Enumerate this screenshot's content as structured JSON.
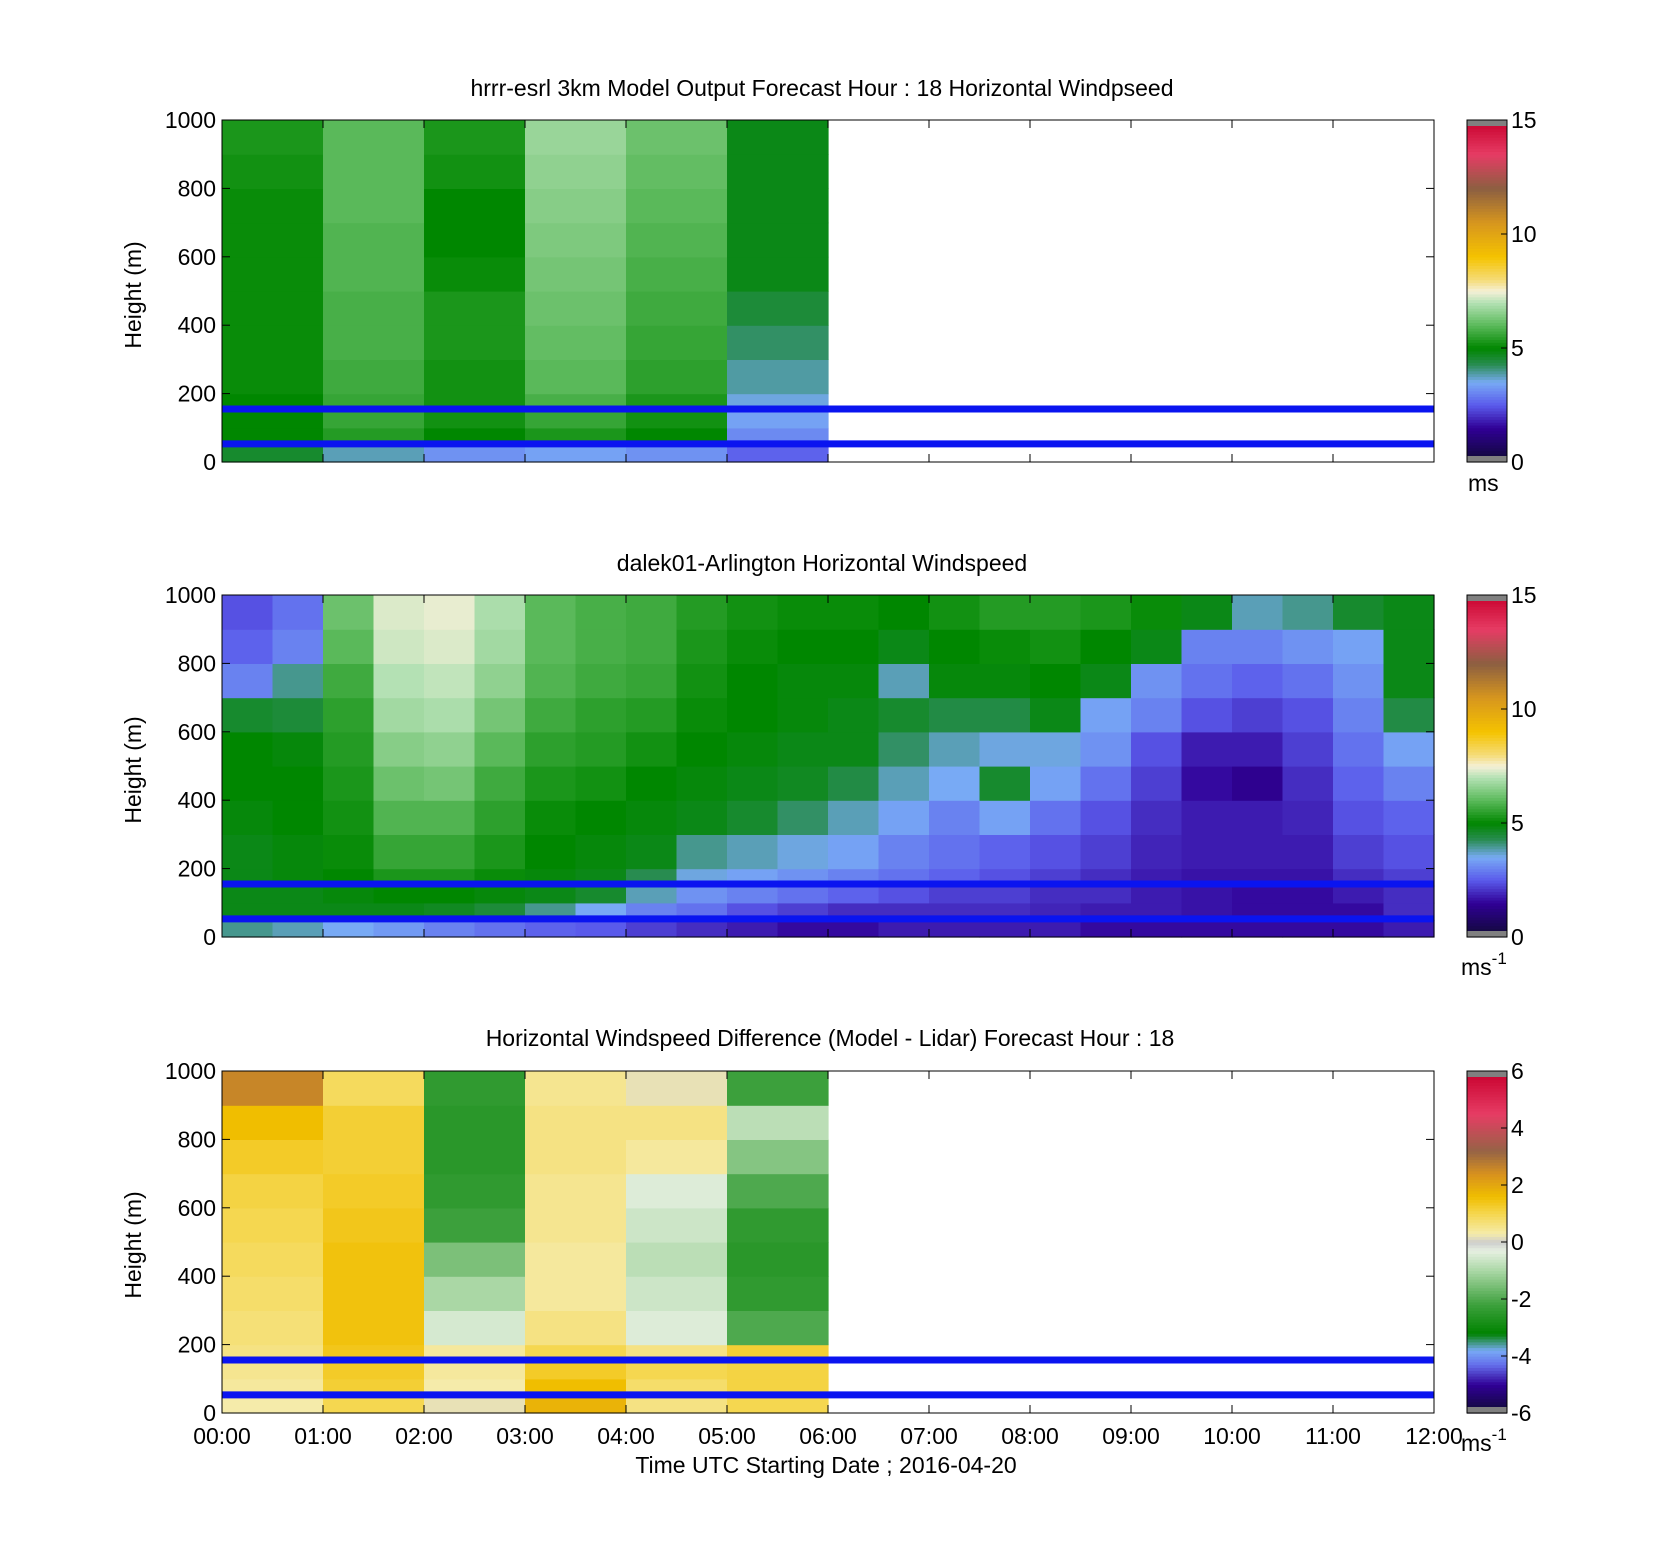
{
  "chart_data": [
    {
      "type": "heatmap",
      "title": "hrrr-esrl 3km Model Output   Forecast Hour : 18 Horizontal Windpseed",
      "ylabel": "Height (m)",
      "xlabel": "",
      "xlim": [
        0,
        12
      ],
      "ylim": [
        0,
        1000
      ],
      "yticks": [
        "0",
        "200",
        "400",
        "600",
        "800",
        "1000"
      ],
      "xticks": [
        "",
        "",
        "",
        "",
        "",
        "",
        "",
        "",
        "",
        "",
        "",
        "",
        ""
      ],
      "colorbar": {
        "ticks": [
          "0",
          "5",
          "10",
          "15"
        ],
        "range": [
          0,
          15
        ],
        "unit": "ms",
        "unit_sup": ""
      },
      "reference_lines_m": [
        155,
        53
      ],
      "data": {
        "x_start_hours": [
          0,
          1,
          2,
          3,
          4,
          5
        ],
        "column_width_hours": 1,
        "height_levels_m": [
          0,
          50,
          100,
          150,
          200,
          300,
          400,
          500,
          600,
          700,
          800,
          900
        ],
        "values": [
          [
            4.6,
            5.0,
            5.0,
            5.0,
            5.1,
            5.1,
            5.1,
            5.1,
            5.1,
            5.1,
            5.2,
            5.3
          ],
          [
            3.8,
            5.4,
            5.6,
            5.6,
            5.7,
            5.8,
            5.8,
            5.9,
            5.9,
            6.0,
            6.0,
            6.0
          ],
          [
            3.2,
            5.0,
            5.2,
            5.2,
            5.2,
            5.3,
            5.3,
            5.1,
            5.0,
            5.0,
            5.2,
            5.3
          ],
          [
            3.4,
            5.3,
            5.6,
            5.8,
            6.0,
            6.1,
            6.2,
            6.3,
            6.4,
            6.5,
            6.6,
            6.7
          ],
          [
            3.2,
            5.0,
            5.2,
            5.3,
            5.5,
            5.6,
            5.7,
            5.8,
            5.9,
            6.0,
            6.1,
            6.2
          ],
          [
            2.6,
            3.1,
            3.4,
            3.6,
            3.9,
            4.2,
            4.5,
            4.8,
            4.8,
            4.8,
            4.8,
            4.8
          ]
        ]
      }
    },
    {
      "type": "heatmap",
      "title": "dalek01-Arlington  Horizontal Windspeed",
      "ylabel": "Height (m)",
      "xlabel": "",
      "xlim": [
        0,
        12
      ],
      "ylim": [
        0,
        1000
      ],
      "yticks": [
        "0",
        "200",
        "400",
        "600",
        "800",
        "1000"
      ],
      "xticks": [
        "",
        "",
        "",
        "",
        "",
        "",
        "",
        "",
        "",
        "",
        "",
        "",
        ""
      ],
      "colorbar": {
        "ticks": [
          "0",
          "5",
          "10",
          "15"
        ],
        "range": [
          0,
          15
        ],
        "unit": "ms",
        "unit_sup": "-1"
      },
      "reference_lines_m": [
        155,
        53
      ],
      "data": {
        "x_start_hours": [
          0,
          0.5,
          1,
          1.5,
          2,
          2.5,
          3,
          3.5,
          4,
          4.5,
          5,
          5.5,
          6,
          6.5,
          7,
          7.5,
          8,
          8.5,
          9,
          9.5,
          10,
          10.5,
          11,
          11.5
        ],
        "column_width_hours": 0.5,
        "height_levels_m": [
          0,
          50,
          100,
          150,
          200,
          300,
          400,
          500,
          600,
          700,
          800,
          900
        ],
        "values": [
          [
            4.0,
            4.8,
            4.8,
            4.8,
            4.8,
            4.9,
            5.0,
            5.0,
            4.6,
            3.0,
            2.6,
            2.4
          ],
          [
            3.8,
            4.8,
            4.8,
            4.9,
            4.9,
            5.0,
            5.0,
            4.9,
            4.5,
            4.0,
            3.0,
            2.8
          ],
          [
            3.5,
            4.8,
            4.9,
            5.0,
            5.1,
            5.2,
            5.3,
            5.4,
            5.5,
            5.7,
            6.0,
            6.2
          ],
          [
            3.3,
            4.8,
            5.0,
            5.3,
            5.6,
            5.9,
            6.2,
            6.5,
            6.8,
            7.0,
            7.2,
            7.3
          ],
          [
            3.0,
            4.7,
            5.0,
            5.3,
            5.6,
            5.9,
            6.3,
            6.6,
            6.9,
            7.1,
            7.3,
            7.4
          ],
          [
            2.8,
            4.5,
            4.9,
            5.1,
            5.3,
            5.5,
            5.7,
            6.0,
            6.3,
            6.6,
            6.8,
            6.9
          ],
          [
            2.6,
            4.0,
            4.8,
            4.9,
            5.0,
            5.1,
            5.3,
            5.5,
            5.7,
            5.9,
            6.0,
            6.0
          ],
          [
            2.5,
            3.5,
            4.6,
            4.8,
            4.9,
            5.0,
            5.2,
            5.4,
            5.5,
            5.7,
            5.8,
            5.8
          ],
          [
            2.2,
            3.0,
            3.8,
            4.3,
            4.8,
            4.9,
            5.0,
            5.2,
            5.4,
            5.6,
            5.7,
            5.7
          ],
          [
            2.0,
            2.8,
            3.2,
            3.6,
            4.0,
            4.8,
            4.9,
            5.0,
            5.1,
            5.2,
            5.3,
            5.4
          ],
          [
            1.8,
            2.4,
            3.0,
            3.4,
            3.8,
            4.6,
            4.8,
            4.9,
            5.0,
            5.0,
            5.1,
            5.2
          ],
          [
            1.6,
            2.2,
            2.8,
            3.2,
            3.6,
            4.2,
            4.7,
            4.8,
            4.9,
            4.9,
            5.0,
            5.1
          ],
          [
            1.6,
            2.0,
            2.6,
            3.0,
            3.4,
            3.8,
            4.4,
            4.8,
            4.8,
            4.9,
            5.0,
            5.1
          ],
          [
            1.8,
            2.0,
            2.4,
            2.8,
            3.0,
            3.4,
            3.8,
            4.2,
            4.6,
            3.8,
            4.8,
            5.0
          ],
          [
            1.8,
            2.0,
            2.2,
            2.6,
            2.8,
            3.0,
            3.5,
            3.8,
            4.4,
            4.9,
            5.0,
            5.2
          ],
          [
            1.8,
            2.0,
            2.2,
            2.4,
            2.6,
            3.4,
            4.6,
            3.6,
            4.4,
            4.9,
            5.1,
            5.4
          ],
          [
            1.8,
            1.9,
            2.0,
            2.2,
            2.4,
            2.8,
            3.4,
            3.6,
            4.8,
            5.0,
            5.2,
            5.4
          ],
          [
            1.6,
            1.8,
            2.0,
            2.0,
            2.2,
            2.4,
            2.8,
            3.2,
            3.4,
            4.8,
            5.0,
            5.3
          ],
          [
            1.6,
            1.8,
            1.8,
            1.8,
            1.9,
            2.0,
            2.2,
            2.4,
            3.0,
            3.2,
            4.8,
            5.1
          ],
          [
            1.6,
            1.7,
            1.7,
            1.7,
            1.8,
            1.8,
            1.6,
            1.8,
            2.4,
            2.8,
            3.0,
            4.8
          ],
          [
            1.6,
            1.6,
            1.6,
            1.7,
            1.8,
            1.8,
            1.4,
            1.8,
            2.2,
            2.6,
            3.0,
            3.8
          ],
          [
            1.6,
            1.6,
            1.6,
            1.7,
            1.8,
            1.9,
            2.0,
            2.2,
            2.4,
            2.8,
            3.2,
            4.0
          ],
          [
            1.6,
            1.6,
            1.8,
            2.0,
            2.2,
            2.4,
            2.6,
            2.8,
            3.0,
            3.2,
            3.4,
            4.6
          ],
          [
            1.8,
            2.0,
            2.0,
            2.2,
            2.4,
            2.6,
            3.0,
            3.4,
            4.4,
            4.8,
            4.8,
            4.8
          ]
        ]
      }
    },
    {
      "type": "heatmap",
      "title": "Horizontal Windspeed Difference (Model - Lidar) Forecast Hour : 18",
      "ylabel": "Height (m)",
      "xlabel": "Time UTC  Starting Date ; 2016-04-20",
      "xlim": [
        0,
        12
      ],
      "ylim": [
        0,
        1000
      ],
      "yticks": [
        "0",
        "200",
        "400",
        "600",
        "800",
        "1000"
      ],
      "xticks": [
        "00:00",
        "01:00",
        "02:00",
        "03:00",
        "04:00",
        "05:00",
        "06:00",
        "07:00",
        "08:00",
        "09:00",
        "10:00",
        "11:00",
        "12:00"
      ],
      "colorbar": {
        "ticks": [
          "-6",
          "-4",
          "-2",
          "0",
          "2",
          "4",
          "6"
        ],
        "range": [
          -6,
          6
        ],
        "unit": "ms",
        "unit_sup": "-1"
      },
      "reference_lines_m": [
        155,
        53
      ],
      "data": {
        "x_start_hours": [
          0,
          1,
          2,
          3,
          4,
          5
        ],
        "column_width_hours": 1,
        "height_levels_m": [
          0,
          50,
          100,
          150,
          200,
          300,
          400,
          500,
          600,
          700,
          800,
          900
        ],
        "values": [
          [
            0.3,
            0.4,
            0.5,
            0.6,
            0.7,
            0.8,
            0.9,
            1.0,
            1.1,
            1.3,
            1.6,
            2.6
          ],
          [
            1.0,
            1.2,
            1.3,
            1.4,
            1.5,
            1.5,
            1.5,
            1.4,
            1.3,
            1.2,
            1.2,
            0.9
          ],
          [
            0.2,
            0.3,
            0.4,
            0.4,
            -0.5,
            -1.0,
            -1.5,
            -2.2,
            -2.4,
            -2.5,
            -2.5,
            -2.4
          ],
          [
            1.8,
            1.6,
            1.3,
            1.0,
            0.6,
            0.4,
            0.4,
            0.5,
            0.5,
            0.6,
            0.6,
            0.5
          ],
          [
            0.6,
            0.8,
            1.0,
            0.6,
            -0.4,
            -0.6,
            -0.8,
            -0.6,
            -0.4,
            0.4,
            0.6,
            0.2
          ],
          [
            1.0,
            1.1,
            1.1,
            1.2,
            -2.0,
            -2.4,
            -2.5,
            -2.4,
            -2.0,
            -1.4,
            -0.8,
            -2.2
          ]
        ]
      }
    }
  ]
}
